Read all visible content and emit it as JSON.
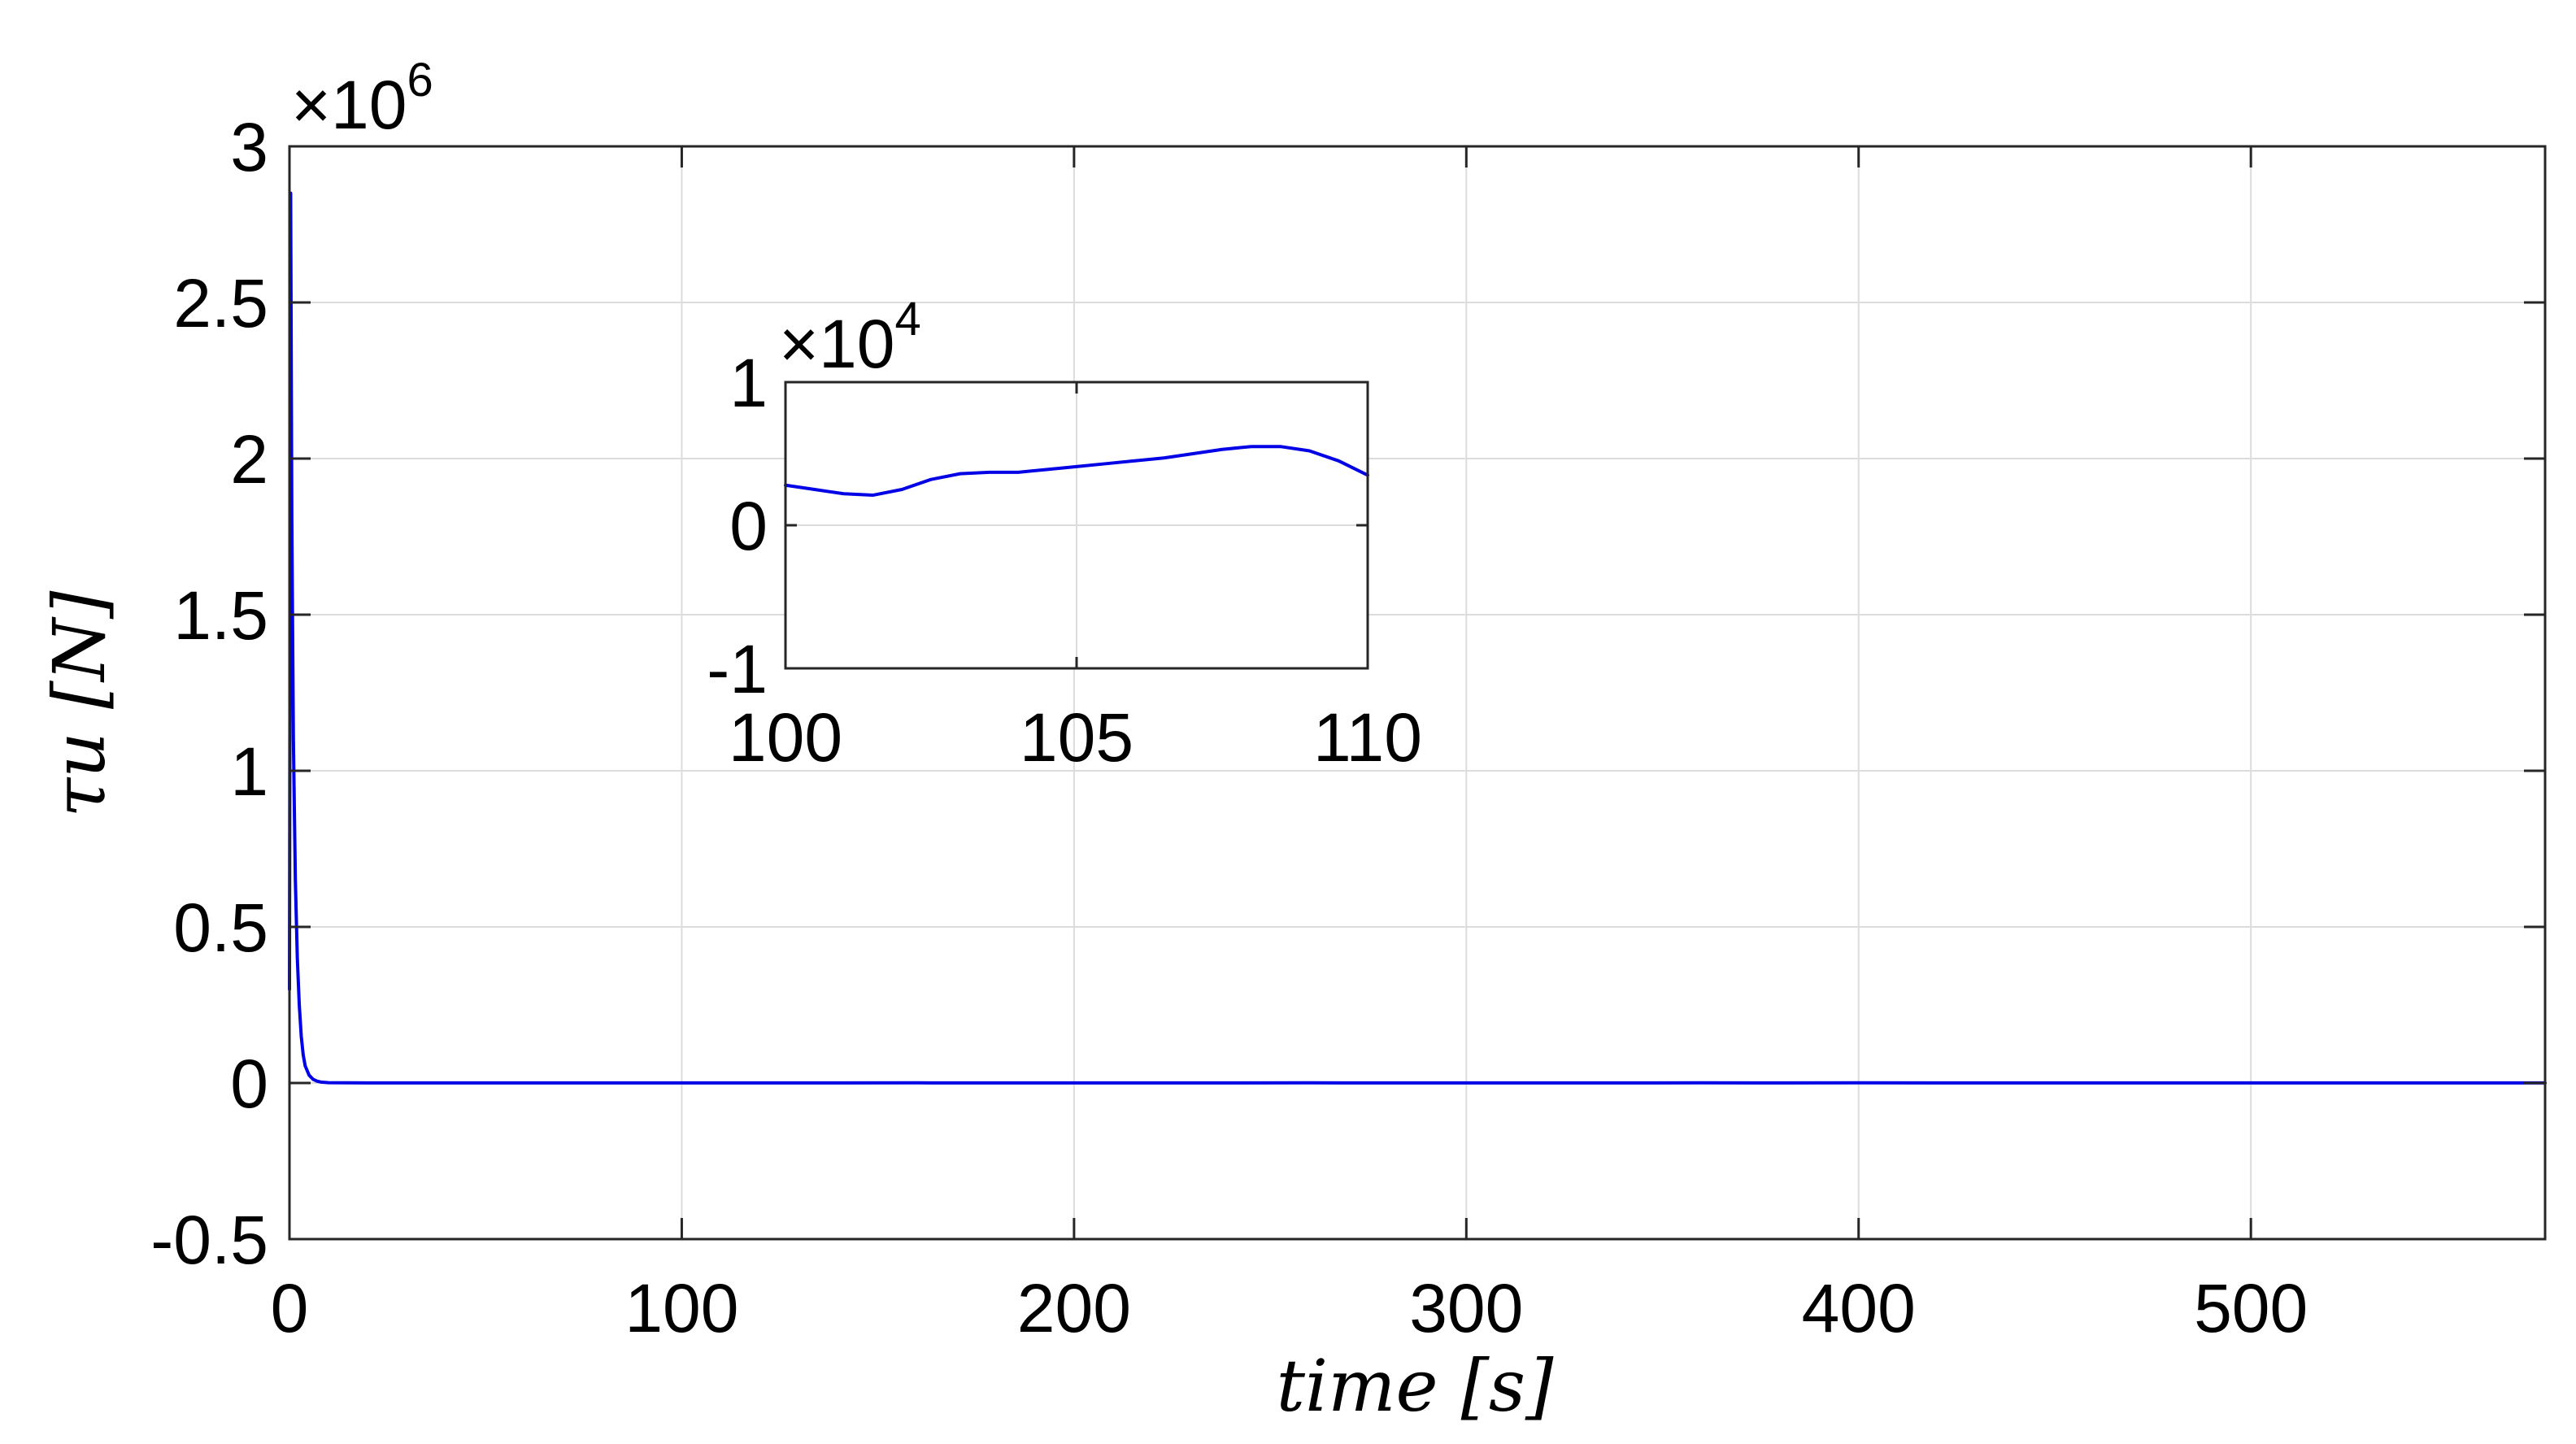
{
  "chart_data": [
    {
      "type": "line",
      "title": "",
      "xlabel": "time [s]",
      "ylabel": "τu [N]",
      "xlim": [
        0,
        575
      ],
      "ylim": [
        -0.5,
        3
      ],
      "y_exponent_label": "×10",
      "y_exponent_power": "6",
      "grid": true,
      "color": "#0000E6",
      "xticks": [
        "0",
        "100",
        "200",
        "300",
        "400",
        "500"
      ],
      "xtick_values": [
        0,
        100,
        200,
        300,
        400,
        500
      ],
      "yticks": [
        "-0.5",
        "0",
        "0.5",
        "1",
        "1.5",
        "2",
        "2.5",
        "3"
      ],
      "ytick_values": [
        -0.5,
        0,
        0.5,
        1,
        1.5,
        2,
        2.5,
        3
      ],
      "series": [
        {
          "x": [
            0,
            0.3,
            0.6,
            1,
            1.5,
            2,
            2.5,
            3,
            3.5,
            4,
            5,
            6,
            7,
            8,
            10,
            15,
            20,
            40,
            60,
            80,
            100,
            120,
            140,
            160,
            180,
            200,
            220,
            240,
            260,
            280,
            300,
            320,
            340,
            360,
            380,
            400,
            420,
            440,
            460,
            480,
            500,
            520,
            540,
            560,
            575
          ],
          "y": [
            0.3,
            2.85,
            1.8,
            1.1,
            0.65,
            0.4,
            0.25,
            0.15,
            0.09,
            0.055,
            0.025,
            0.012,
            0.006,
            0.003,
            0.001,
            0.0005,
            0.0004,
            0.0003,
            0.0004,
            0.0003,
            0.0003,
            0.0004,
            0.0002,
            0.0005,
            0.0003,
            0.0004,
            0.0002,
            0.0004,
            0.0006,
            0.0003,
            0.0004,
            0.0002,
            0.0003,
            0.0006,
            0.0004,
            0.0005,
            0.0003,
            0.0004,
            0.0003,
            0.0004,
            0.0003,
            0.0004,
            0.0003,
            0.0003,
            0.0003
          ]
        }
      ]
    },
    {
      "type": "line",
      "title": "",
      "xlabel": "",
      "ylabel": "",
      "xlim": [
        100,
        110
      ],
      "ylim": [
        -1,
        1
      ],
      "y_exponent_label": "×10",
      "y_exponent_power": "4",
      "grid": true,
      "color": "#0000E6",
      "xticks": [
        "100",
        "105",
        "110"
      ],
      "xtick_values": [
        100,
        105,
        110
      ],
      "yticks": [
        "-1",
        "0",
        "1"
      ],
      "ytick_values": [
        -1,
        0,
        1
      ],
      "series": [
        {
          "x": [
            100,
            100.5,
            101,
            101.5,
            102,
            102.5,
            103,
            103.5,
            104,
            104.5,
            105,
            105.5,
            106,
            106.5,
            107,
            107.5,
            108,
            108.5,
            109,
            109.5,
            110
          ],
          "y": [
            0.28,
            0.25,
            0.22,
            0.21,
            0.25,
            0.32,
            0.36,
            0.37,
            0.37,
            0.39,
            0.41,
            0.43,
            0.45,
            0.47,
            0.5,
            0.53,
            0.55,
            0.55,
            0.52,
            0.45,
            0.35
          ]
        }
      ]
    }
  ]
}
